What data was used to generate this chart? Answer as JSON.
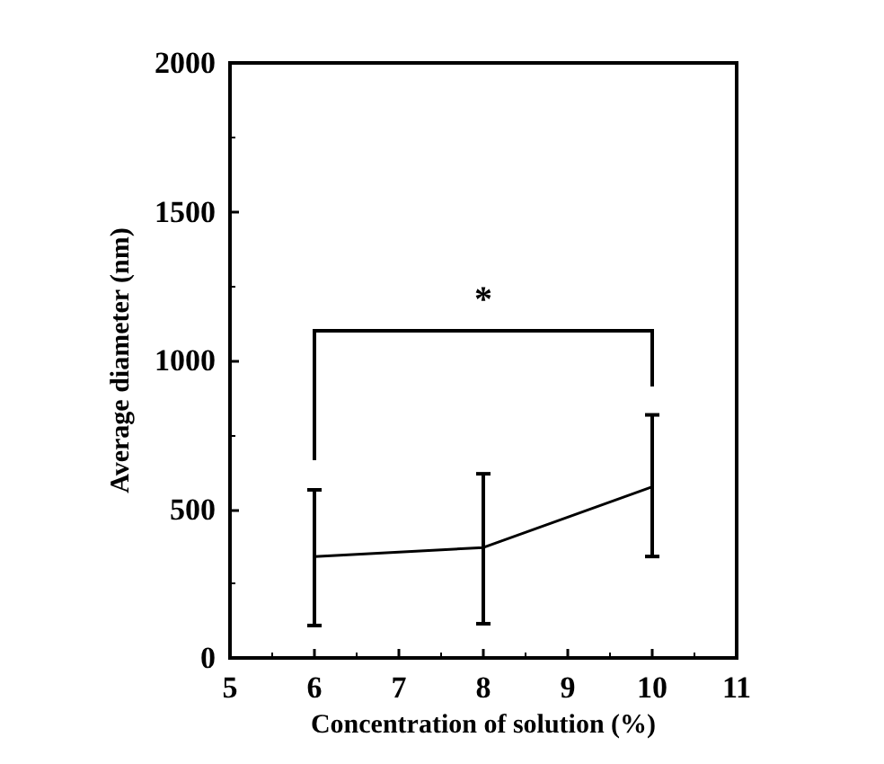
{
  "chart_data": {
    "type": "line",
    "xlabel": "Concentration of solution (%)",
    "ylabel": "Average diameter (nm)",
    "x": [
      6,
      8,
      10
    ],
    "series": [
      {
        "color": "#000000",
        "values": [
          341,
          371,
          575
        ],
        "errors": [
          [
            109,
            565
          ],
          [
            115,
            619
          ],
          [
            341,
            817
          ]
        ]
      }
    ],
    "xlim": [
      5,
      11
    ],
    "xticks": [
      5,
      6,
      7,
      8,
      9,
      10,
      11
    ],
    "ylim": [
      0,
      2000
    ],
    "yticks": [
      0,
      500,
      1000,
      1500,
      2000
    ],
    "grid": false,
    "marker": "none",
    "line_style": "solid",
    "annotations": [
      "*"
    ]
  }
}
